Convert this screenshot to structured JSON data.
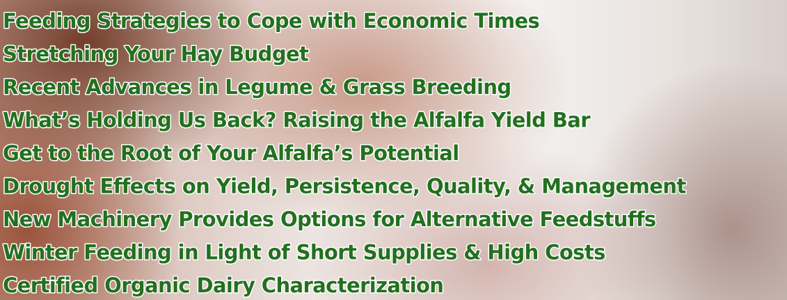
{
  "lines": [
    "Feeding Strategies to Cope with Economic Times",
    "Stretching Your Hay Budget",
    "Recent Advances in Legume & Grass Breeding",
    "What’s Holding Us Back? Raising the Alfalfa Yield Bar",
    "Get to the Root of Your Alfalfa’s Potential",
    "Drought Effects on Yield, Persistence, Quality, & Management",
    "New Machinery Provides Options for Alternative Feedstuffs",
    "Winter Feeding in Light of Short Supplies & High Costs",
    "Certified Organic Dairy Characterization"
  ]
}
